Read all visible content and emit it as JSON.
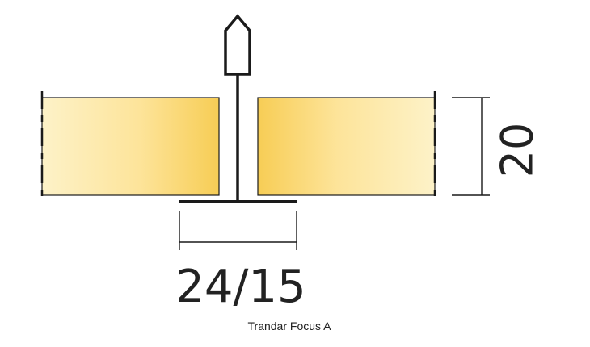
{
  "diagram": {
    "height_dimension": "20",
    "width_dimension": "24/15",
    "caption": "Trandar Focus A"
  },
  "colors": {
    "panel_edge": "#f7cd55",
    "panel_center": "#fde9a6",
    "panel_light": "#fdf2c8",
    "stroke": "#1a1a1a"
  }
}
